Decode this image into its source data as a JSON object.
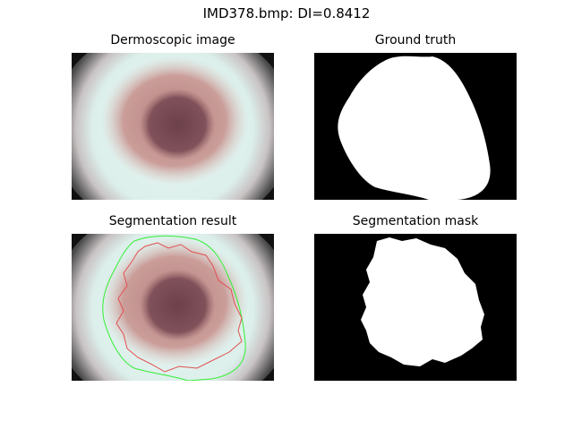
{
  "figure": {
    "suptitle": "IMD378.bmp: DI=0.8412",
    "panels": [
      {
        "title": "Dermoscopic image"
      },
      {
        "title": "Ground truth"
      },
      {
        "title": "Segmentation result"
      },
      {
        "title": "Segmentation mask"
      }
    ]
  },
  "colors": {
    "background": "#ffffff",
    "mask_background": "#000000",
    "mask_foreground": "#ffffff",
    "ground_truth_contour": "#33ee33",
    "predicted_contour": "#e05050",
    "skin": "#d9f3ef",
    "lesion_outer": "#c9928e",
    "lesion_core": "#7a4a50"
  }
}
